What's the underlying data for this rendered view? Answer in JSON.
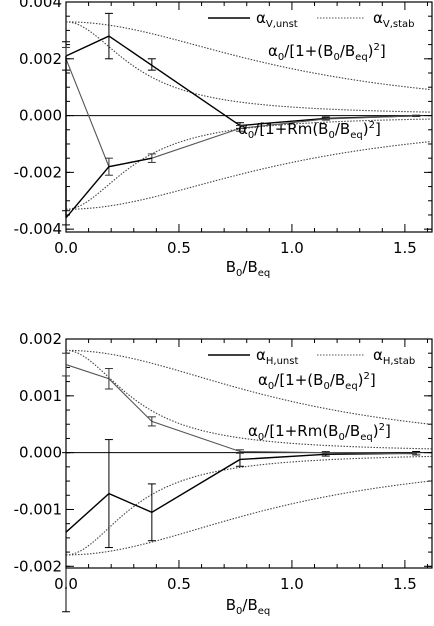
{
  "chart_data": [
    {
      "type": "line",
      "xlabel": {
        "main": "B",
        "sub1": "0",
        "mid": "/B",
        "sub2": "eq"
      },
      "ylabel": "",
      "xlim": [
        0,
        1.62
      ],
      "ylim": [
        -0.0041,
        0.004
      ],
      "x_ticks": [
        0,
        0.5,
        1.0,
        1.5
      ],
      "x_tick_labels": [
        "0.0",
        "0.5",
        "1.0",
        "1.5"
      ],
      "y_ticks": [
        0.004,
        0.002,
        0.0,
        -0.002,
        -0.004
      ],
      "y_tick_labels": [
        "0.004",
        "0.002",
        "0.000",
        "-0.002",
        "-0.004"
      ],
      "zero_line": true,
      "legend": [
        {
          "greek": "α",
          "sub": "V,unst",
          "style": "solid"
        },
        {
          "greek": "α",
          "sub": "V,stab",
          "style": "dotted"
        }
      ],
      "annotations": [
        {
          "a0": "α",
          "a0sub": "0",
          "lb": "/[1+(B",
          "bsub1": "0",
          "mid": "/B",
          "bsub2": "eq",
          "close": ")",
          "exp": "2",
          "rb": "]"
        },
        {
          "a0": "α",
          "a0sub": "0",
          "lb": "/[1+Rm(B",
          "bsub1": "0",
          "mid": "/B",
          "bsub2": "eq",
          "close": ")",
          "exp": "2",
          "rb": "]"
        }
      ],
      "curves": [
        {
          "formula": "quenching",
          "amplitude": 0.0033,
          "rm": 1,
          "side": "upper"
        },
        {
          "formula": "quenching",
          "amplitude": 0.0033,
          "rm": 10,
          "side": "upper"
        },
        {
          "formula": "quenching",
          "amplitude": -0.0033,
          "rm": 1,
          "side": "lower"
        },
        {
          "formula": "quenching",
          "amplitude": -0.0033,
          "rm": 10,
          "side": "lower"
        }
      ],
      "series": [
        {
          "style": "solid",
          "x": [
            0.0,
            0.19,
            0.77,
            1.15,
            1.55
          ],
          "y": [
            0.0021,
            0.0028,
            -0.00035,
            -0.0001,
            -1e-05
          ],
          "err": [
            0.0005,
            0.0008,
            0.0001,
            5e-05,
            2e-05
          ]
        },
        {
          "style": "dotted",
          "x": [
            0.0,
            0.19,
            0.38,
            0.77,
            1.15,
            1.55
          ],
          "y": [
            0.002,
            -0.0018,
            -0.0015,
            -0.00045,
            -0.00012,
            -1e-05
          ],
          "err": [
            0.0004,
            0.0003,
            0.00015,
            0.0001,
            4e-05,
            2e-05
          ]
        },
        {
          "style": "solid",
          "x": [
            0.0,
            0.0
          ],
          "y": [
            0.0021,
            -0.0036
          ],
          "err": [
            0.0,
            0.0
          ]
        },
        {
          "style": "solid",
          "x": [
            0.0,
            0.19,
            0.38
          ],
          "y": [
            -0.0036,
            -0.0018,
            -0.0015
          ],
          "err": [
            0.00025,
            0.0,
            0.0
          ]
        },
        {
          "style": "solid",
          "x": [
            0.38
          ],
          "y": [
            0.0018
          ],
          "err": [
            0.0002
          ]
        }
      ]
    },
    {
      "type": "line",
      "xlabel": {
        "main": "B",
        "sub1": "0",
        "mid": "/B",
        "sub2": "eq"
      },
      "ylabel": "",
      "xlim": [
        0,
        1.62
      ],
      "ylim": [
        -0.00203,
        0.002
      ],
      "x_ticks": [
        0,
        0.5,
        1.0,
        1.5
      ],
      "x_tick_labels": [
        "0.0",
        "0.5",
        "1.0",
        "1.5"
      ],
      "y_ticks": [
        0.002,
        0.001,
        0.0,
        -0.001,
        -0.002
      ],
      "y_tick_labels": [
        "0.002",
        "0.001",
        "0.000",
        "-0.001",
        "-0.002"
      ],
      "zero_line": true,
      "legend": [
        {
          "greek": "α",
          "sub": "H,unst",
          "style": "solid"
        },
        {
          "greek": "α",
          "sub": "H,stab",
          "style": "dotted"
        }
      ],
      "annotations": [
        {
          "a0": "α",
          "a0sub": "0",
          "lb": "/[1+(B",
          "bsub1": "0",
          "mid": "/B",
          "bsub2": "eq",
          "close": ")",
          "exp": "2",
          "rb": "]"
        },
        {
          "a0": "α",
          "a0sub": "0",
          "lb": "/[1+Rm(B",
          "bsub1": "0",
          "mid": "/B",
          "bsub2": "eq",
          "close": ")",
          "exp": "2",
          "rb": "]"
        }
      ],
      "curves": [
        {
          "formula": "quenching",
          "amplitude": 0.0018,
          "rm": 1,
          "side": "upper"
        },
        {
          "formula": "quenching",
          "amplitude": 0.0018,
          "rm": 10,
          "side": "upper"
        },
        {
          "formula": "quenching",
          "amplitude": -0.0018,
          "rm": 1,
          "side": "lower"
        },
        {
          "formula": "quenching",
          "amplitude": -0.0018,
          "rm": 10,
          "side": "lower"
        }
      ],
      "series": [
        {
          "style": "solid",
          "x": [
            0.0,
            0.19,
            0.38,
            0.77,
            1.15,
            1.55
          ],
          "y": [
            -0.0014,
            -0.00072,
            -0.00105,
            -0.00012,
            -3e-05,
            -1e-05
          ],
          "err": [
            0.0014,
            0.00095,
            0.0005,
            0.00012,
            3e-05,
            3e-05
          ]
        },
        {
          "style": "dotted",
          "x": [
            0.0,
            0.19,
            0.38,
            0.77,
            1.15,
            1.55
          ],
          "y": [
            0.00155,
            0.0013,
            0.00055,
            2e-05,
            0.0,
            -2e-05
          ],
          "err": [
            0.0002,
            0.00018,
            8e-05,
            3e-05,
            2e-05,
            2e-05
          ]
        }
      ]
    }
  ]
}
